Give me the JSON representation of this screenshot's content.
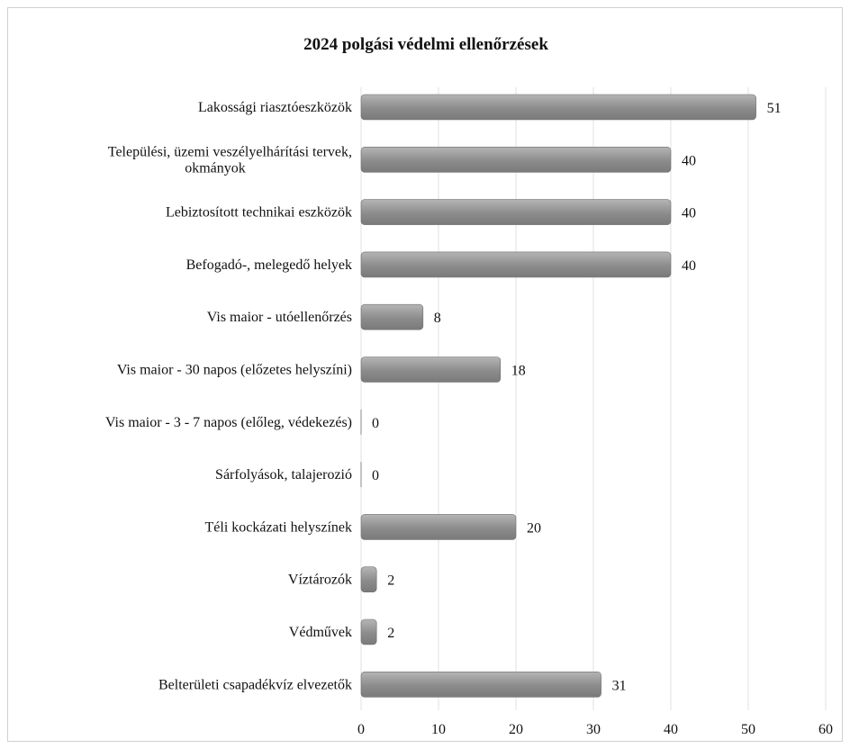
{
  "chart_data": {
    "type": "bar",
    "orientation": "horizontal",
    "title": "2024 polgási védelmi ellenőrzések",
    "categories": [
      "Lakossági riasztóeszközök",
      "Települési, üzemi veszélyelhárítási tervek, okmányok",
      "Lebiztosított technikai eszközök",
      "Befogadó-, melegedő helyek",
      "Vis maior - utóellenőrzés",
      "Vis maior - 30 napos (előzetes helyszíni)",
      "Vis maior - 3 - 7 napos (előleg, védekezés)",
      "Sárfolyások, talajerozió",
      "Téli kockázati helyszínek",
      "Víztározók",
      "Védművek",
      "Belterületi csapadékvíz elvezetők"
    ],
    "category_lines": [
      [
        "Lakossági riasztóeszközök"
      ],
      [
        "Települési, üzemi veszélyelhárítási tervek,",
        "okmányok"
      ],
      [
        "Lebiztosított technikai eszközök"
      ],
      [
        "Befogadó-, melegedő helyek"
      ],
      [
        "Vis maior - utóellenőrzés"
      ],
      [
        "Vis maior - 30 napos (előzetes helyszíni)"
      ],
      [
        "Vis maior - 3 - 7 napos (előleg, védekezés)"
      ],
      [
        "Sárfolyások, talajerozió"
      ],
      [
        "Téli kockázati helyszínek"
      ],
      [
        "Víztározók"
      ],
      [
        "Védművek"
      ],
      [
        "Belterületi csapadékvíz elvezetők"
      ]
    ],
    "values": [
      51,
      40,
      40,
      40,
      8,
      18,
      0,
      0,
      20,
      2,
      2,
      31
    ],
    "xlim": [
      0,
      60
    ],
    "x_ticks": [
      0,
      10,
      20,
      30,
      40,
      50,
      60
    ],
    "xlabel": "",
    "ylabel": "",
    "grid": "vertical",
    "legend": "none",
    "bar_color": "#8c8c8c",
    "bar_color_light": "#b5b5b5"
  }
}
